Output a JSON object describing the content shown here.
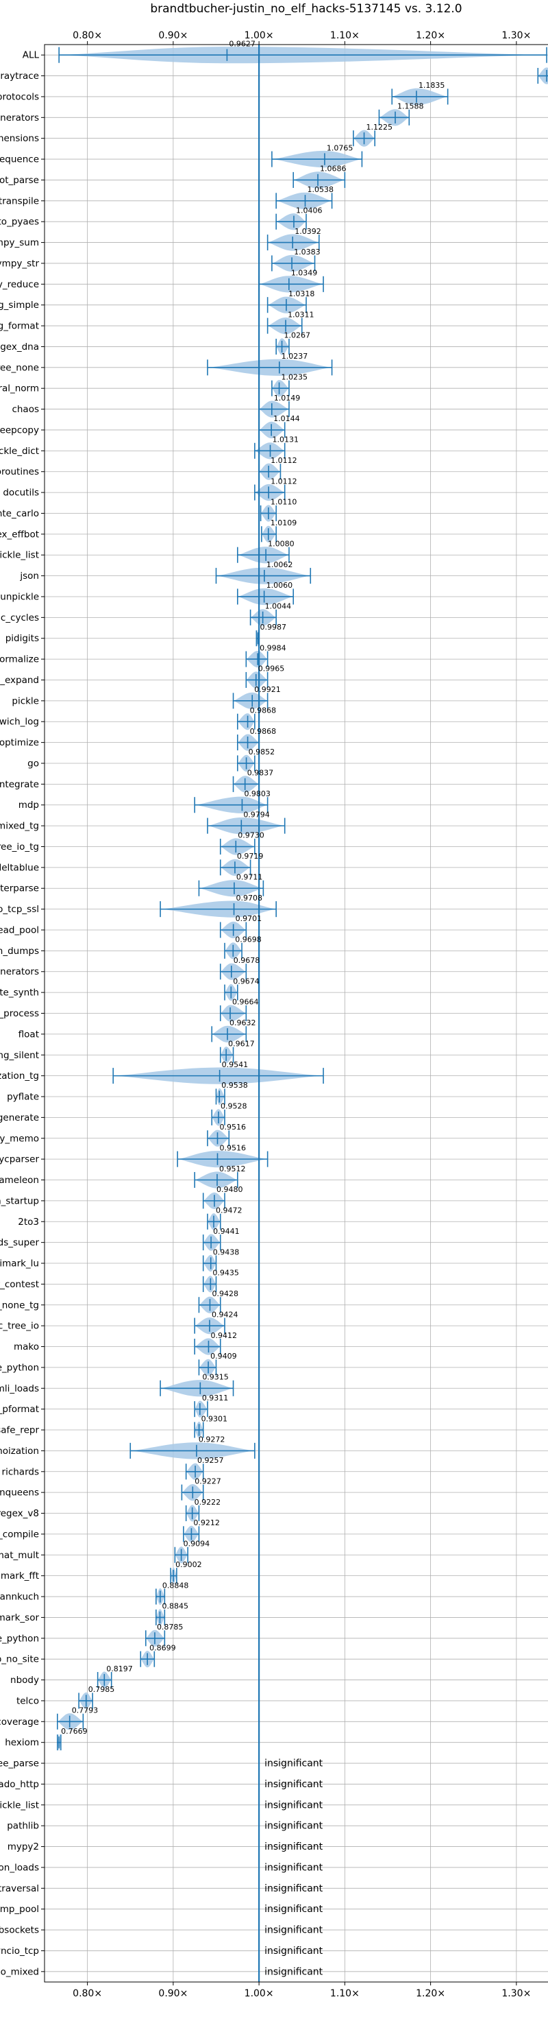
{
  "chart_data": {
    "type": "violin",
    "title": "brandtbucher-justin_no_elf_hacks-5137145 vs. 3.12.0",
    "xlim": [
      0.75,
      1.36
    ],
    "xticks": [
      0.8,
      0.9,
      1.0,
      1.1,
      1.2,
      1.3
    ],
    "xtick_labels": [
      "0.80×",
      "0.90×",
      "1.00×",
      "1.10×",
      "1.20×",
      "1.30×"
    ],
    "reference_line": 1.0,
    "grid": true,
    "colors": {
      "violin": "#a6c8e6",
      "line": "#1f77b4"
    },
    "benchmarks": [
      {
        "name": "ALL",
        "value": 0.9627,
        "label": "0.9627",
        "lo": 0.7669,
        "hi": 1.3353
      },
      {
        "name": "raytrace",
        "value": 1.3353,
        "label": "1.3353",
        "lo": 1.3251,
        "hi": 1.3452
      },
      {
        "name": "typing_runtime_protocols",
        "value": 1.1835,
        "label": "1.1835",
        "lo": 1.155,
        "hi": 1.22
      },
      {
        "name": "generators",
        "value": 1.1588,
        "label": "1.1588",
        "lo": 1.14,
        "hi": 1.175
      },
      {
        "name": "comprehensions",
        "value": 1.1225,
        "label": "1.1225",
        "lo": 1.11,
        "hi": 1.135
      },
      {
        "name": "unpack_sequence",
        "value": 1.0765,
        "label": "1.0765",
        "lo": 1.015,
        "hi": 1.12
      },
      {
        "name": "sqlglot_parse",
        "value": 1.0686,
        "label": "1.0686",
        "lo": 1.04,
        "hi": 1.1
      },
      {
        "name": "sqlglot_transpile",
        "value": 1.0538,
        "label": "1.0538",
        "lo": 1.02,
        "hi": 1.085
      },
      {
        "name": "crypto_pyaes",
        "value": 1.0406,
        "label": "1.0406",
        "lo": 1.02,
        "hi": 1.055
      },
      {
        "name": "sympy_sum",
        "value": 1.0392,
        "label": "1.0392",
        "lo": 1.01,
        "hi": 1.07
      },
      {
        "name": "sympy_str",
        "value": 1.0383,
        "label": "1.0383",
        "lo": 1.015,
        "hi": 1.065
      },
      {
        "name": "deepcopy_reduce",
        "value": 1.0349,
        "label": "1.0349",
        "lo": 1.0,
        "hi": 1.075
      },
      {
        "name": "logging_simple",
        "value": 1.0318,
        "label": "1.0318",
        "lo": 1.01,
        "hi": 1.055
      },
      {
        "name": "logging_format",
        "value": 1.0311,
        "label": "1.0311",
        "lo": 1.01,
        "hi": 1.05
      },
      {
        "name": "regex_dna",
        "value": 1.0267,
        "label": "1.0267",
        "lo": 1.02,
        "hi": 1.035
      },
      {
        "name": "async_tree_none",
        "value": 1.0237,
        "label": "1.0237",
        "lo": 0.94,
        "hi": 1.085
      },
      {
        "name": "spectral_norm",
        "value": 1.0235,
        "label": "1.0235",
        "lo": 1.015,
        "hi": 1.035
      },
      {
        "name": "chaos",
        "value": 1.0149,
        "label": "1.0149",
        "lo": 1.0,
        "hi": 1.035
      },
      {
        "name": "deepcopy",
        "value": 1.0144,
        "label": "1.0144",
        "lo": 1.0,
        "hi": 1.03
      },
      {
        "name": "pickle_dict",
        "value": 1.0131,
        "label": "1.0131",
        "lo": 0.995,
        "hi": 1.03
      },
      {
        "name": "coroutines",
        "value": 1.0112,
        "label": "1.0112",
        "lo": 1.0,
        "hi": 1.025
      },
      {
        "name": "docutils",
        "value": 1.0112,
        "label": "1.0112",
        "lo": 0.995,
        "hi": 1.03
      },
      {
        "name": "scimark_monte_carlo",
        "value": 1.011,
        "label": "1.0110",
        "lo": 1.002,
        "hi": 1.02
      },
      {
        "name": "regex_effbot",
        "value": 1.0109,
        "label": "1.0109",
        "lo": 1.003,
        "hi": 1.02
      },
      {
        "name": "unpickle_list",
        "value": 1.008,
        "label": "1.0080",
        "lo": 0.975,
        "hi": 1.035
      },
      {
        "name": "json",
        "value": 1.0062,
        "label": "1.0062",
        "lo": 0.95,
        "hi": 1.06
      },
      {
        "name": "unpickle",
        "value": 1.006,
        "label": "1.0060",
        "lo": 0.975,
        "hi": 1.04
      },
      {
        "name": "create_gc_cycles",
        "value": 1.0044,
        "label": "1.0044",
        "lo": 0.99,
        "hi": 1.02
      },
      {
        "name": "pidigits",
        "value": 0.9987,
        "label": "0.9987",
        "lo": 0.997,
        "hi": 1.0
      },
      {
        "name": "sqlglot_normalize",
        "value": 0.9984,
        "label": "0.9984",
        "lo": 0.985,
        "hi": 1.01
      },
      {
        "name": "sympy_expand",
        "value": 0.9965,
        "label": "0.9965",
        "lo": 0.985,
        "hi": 1.01
      },
      {
        "name": "pickle",
        "value": 0.9921,
        "label": "0.9921",
        "lo": 0.97,
        "hi": 1.01
      },
      {
        "name": "dulwich_log",
        "value": 0.9868,
        "label": "0.9868",
        "lo": 0.975,
        "hi": 0.995
      },
      {
        "name": "sqlglot_optimize",
        "value": 0.9868,
        "label": "0.9868",
        "lo": 0.975,
        "hi": 1.0
      },
      {
        "name": "go",
        "value": 0.9852,
        "label": "0.9852",
        "lo": 0.975,
        "hi": 0.995
      },
      {
        "name": "sympy_integrate",
        "value": 0.9837,
        "label": "0.9837",
        "lo": 0.97,
        "hi": 1.0
      },
      {
        "name": "mdp",
        "value": 0.9803,
        "label": "0.9803",
        "lo": 0.925,
        "hi": 1.01
      },
      {
        "name": "async_tree_cpu_io_mixed_tg",
        "value": 0.9794,
        "label": "0.9794",
        "lo": 0.94,
        "hi": 1.03
      },
      {
        "name": "async_tree_io_tg",
        "value": 0.973,
        "label": "0.9730",
        "lo": 0.955,
        "hi": 0.995
      },
      {
        "name": "deltablue",
        "value": 0.9719,
        "label": "0.9719",
        "lo": 0.955,
        "hi": 0.99
      },
      {
        "name": "xml_etree_iterparse",
        "value": 0.9711,
        "label": "0.9711",
        "lo": 0.93,
        "hi": 1.005
      },
      {
        "name": "asyncio_tcp_ssl",
        "value": 0.9708,
        "label": "0.9708",
        "lo": 0.885,
        "hi": 1.02
      },
      {
        "name": "bench_thread_pool",
        "value": 0.9701,
        "label": "0.9701",
        "lo": 0.955,
        "hi": 0.985
      },
      {
        "name": "json_dumps",
        "value": 0.9698,
        "label": "0.9698",
        "lo": 0.96,
        "hi": 0.98
      },
      {
        "name": "async_generators",
        "value": 0.9678,
        "label": "0.9678",
        "lo": 0.955,
        "hi": 0.985
      },
      {
        "name": "sqlite_synth",
        "value": 0.9674,
        "label": "0.9674",
        "lo": 0.96,
        "hi": 0.975
      },
      {
        "name": "xml_etree_process",
        "value": 0.9664,
        "label": "0.9664",
        "lo": 0.955,
        "hi": 0.985
      },
      {
        "name": "float",
        "value": 0.9632,
        "label": "0.9632",
        "lo": 0.945,
        "hi": 0.985
      },
      {
        "name": "logging_silent",
        "value": 0.9617,
        "label": "0.9617",
        "lo": 0.955,
        "hi": 0.97
      },
      {
        "name": "async_tree_memoization_tg",
        "value": 0.9541,
        "label": "0.9541",
        "lo": 0.83,
        "hi": 1.075
      },
      {
        "name": "pyflate",
        "value": 0.9538,
        "label": "0.9538",
        "lo": 0.95,
        "hi": 0.96
      },
      {
        "name": "xml_etree_generate",
        "value": 0.9528,
        "label": "0.9528",
        "lo": 0.945,
        "hi": 0.96
      },
      {
        "name": "deepcopy_memo",
        "value": 0.9516,
        "label": "0.9516",
        "lo": 0.94,
        "hi": 0.965
      },
      {
        "name": "pycparser",
        "value": 0.9516,
        "label": "0.9516",
        "lo": 0.905,
        "hi": 1.01
      },
      {
        "name": "chameleon",
        "value": 0.9512,
        "label": "0.9512",
        "lo": 0.925,
        "hi": 0.975
      },
      {
        "name": "python_startup",
        "value": 0.948,
        "label": "0.9480",
        "lo": 0.935,
        "hi": 0.96
      },
      {
        "name": "2to3",
        "value": 0.9472,
        "label": "0.9472",
        "lo": 0.94,
        "hi": 0.955
      },
      {
        "name": "richards_super",
        "value": 0.9441,
        "label": "0.9441",
        "lo": 0.935,
        "hi": 0.955
      },
      {
        "name": "scimark_lu",
        "value": 0.9438,
        "label": "0.9438",
        "lo": 0.935,
        "hi": 0.95
      },
      {
        "name": "meteor_contest",
        "value": 0.9435,
        "label": "0.9435",
        "lo": 0.935,
        "hi": 0.95
      },
      {
        "name": "async_tree_none_tg",
        "value": 0.9428,
        "label": "0.9428",
        "lo": 0.93,
        "hi": 0.955
      },
      {
        "name": "async_tree_io",
        "value": 0.9424,
        "label": "0.9424",
        "lo": 0.925,
        "hi": 0.96
      },
      {
        "name": "mako",
        "value": 0.9412,
        "label": "0.9412",
        "lo": 0.925,
        "hi": 0.955
      },
      {
        "name": "pickle_pure_python",
        "value": 0.9409,
        "label": "0.9409",
        "lo": 0.93,
        "hi": 0.95
      },
      {
        "name": "tomli_loads",
        "value": 0.9315,
        "label": "0.9315",
        "lo": 0.885,
        "hi": 0.97
      },
      {
        "name": "pprint_pformat",
        "value": 0.9311,
        "label": "0.9311",
        "lo": 0.925,
        "hi": 0.94
      },
      {
        "name": "pprint_safe_repr",
        "value": 0.9301,
        "label": "0.9301",
        "lo": 0.925,
        "hi": 0.935
      },
      {
        "name": "async_tree_memoization",
        "value": 0.9272,
        "label": "0.9272",
        "lo": 0.85,
        "hi": 0.995
      },
      {
        "name": "richards",
        "value": 0.9257,
        "label": "0.9257",
        "lo": 0.915,
        "hi": 0.935
      },
      {
        "name": "nqueens",
        "value": 0.9227,
        "label": "0.9227",
        "lo": 0.91,
        "hi": 0.935
      },
      {
        "name": "regex_v8",
        "value": 0.9222,
        "label": "0.9222",
        "lo": 0.915,
        "hi": 0.93
      },
      {
        "name": "regex_compile",
        "value": 0.9212,
        "label": "0.9212",
        "lo": 0.912,
        "hi": 0.93
      },
      {
        "name": "scimark_sparse_mat_mult",
        "value": 0.9094,
        "label": "0.9094",
        "lo": 0.902,
        "hi": 0.917
      },
      {
        "name": "scimark_fft",
        "value": 0.9002,
        "label": "0.9002",
        "lo": 0.897,
        "hi": 0.904
      },
      {
        "name": "fannkuch",
        "value": 0.8848,
        "label": "0.8848",
        "lo": 0.88,
        "hi": 0.89
      },
      {
        "name": "scimark_sor",
        "value": 0.8845,
        "label": "0.8845",
        "lo": 0.88,
        "hi": 0.89
      },
      {
        "name": "unpickle_pure_python",
        "value": 0.8785,
        "label": "0.8785",
        "lo": 0.868,
        "hi": 0.89
      },
      {
        "name": "python_startup_no_site",
        "value": 0.8699,
        "label": "0.8699",
        "lo": 0.862,
        "hi": 0.878
      },
      {
        "name": "nbody",
        "value": 0.8197,
        "label": "0.8197",
        "lo": 0.812,
        "hi": 0.828
      },
      {
        "name": "telco",
        "value": 0.7985,
        "label": "0.7985",
        "lo": 0.79,
        "hi": 0.806
      },
      {
        "name": "coverage",
        "value": 0.7793,
        "label": "0.7793",
        "lo": 0.765,
        "hi": 0.795
      },
      {
        "name": "hexiom",
        "value": 0.7669,
        "label": "0.7669",
        "lo": 0.765,
        "hi": 0.769
      }
    ],
    "insignificant": {
      "label": "insignificant",
      "names": [
        "xml_etree_parse",
        "tornado_http",
        "pickle_list",
        "pathlib",
        "mypy2",
        "json_loads",
        "gc_traversal",
        "bench_mp_pool",
        "asyncio_websockets",
        "asyncio_tcp",
        "async_tree_cpu_io_mixed"
      ]
    }
  }
}
